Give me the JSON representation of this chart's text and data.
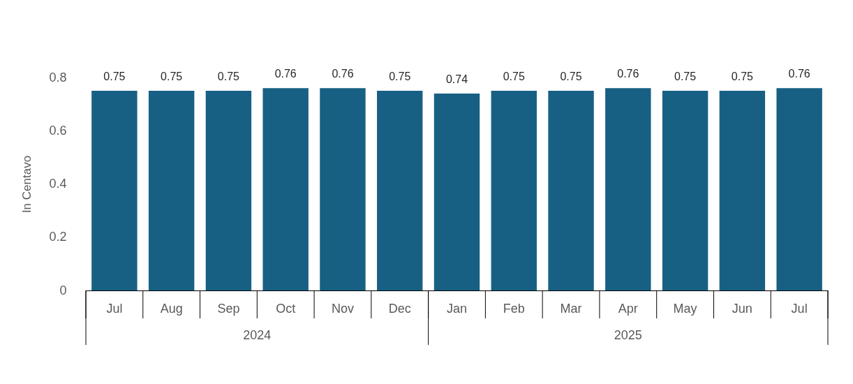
{
  "chart_data": {
    "type": "bar",
    "ylabel": "In Centavo",
    "categories": [
      "Jul",
      "Aug",
      "Sep",
      "Oct",
      "Nov",
      "Dec",
      "Jan",
      "Feb",
      "Mar",
      "Apr",
      "May",
      "Jun",
      "Jul"
    ],
    "values": [
      0.75,
      0.75,
      0.75,
      0.76,
      0.76,
      0.75,
      0.74,
      0.75,
      0.75,
      0.76,
      0.75,
      0.75,
      0.76
    ],
    "color": "#186083",
    "ylim": [
      0,
      0.8
    ],
    "yticks": [
      0,
      0.2,
      0.4,
      0.6,
      0.8
    ],
    "grid": false,
    "data_labels": true,
    "annotations": [
      "2024",
      "2025"
    ]
  }
}
